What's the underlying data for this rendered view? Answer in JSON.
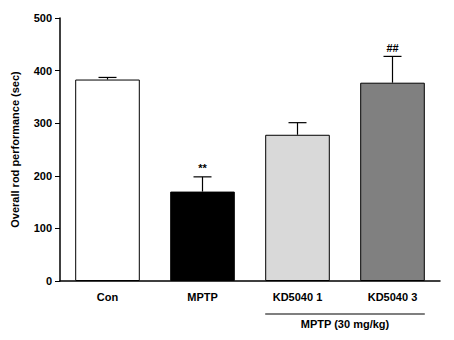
{
  "chart_data": {
    "type": "bar",
    "categories": [
      "Con",
      "MPTP",
      "KD5040 1",
      "KD5040 3"
    ],
    "values": [
      383,
      170,
      278,
      377
    ],
    "errors": [
      4,
      28,
      23,
      50
    ],
    "colors": [
      "#ffffff",
      "#000000",
      "#d9d9d9",
      "#808080"
    ],
    "ylabel": "Overall rod performance (sec)",
    "ylim": [
      0,
      500
    ],
    "yticks": [
      0,
      100,
      200,
      300,
      400,
      500
    ],
    "grid": false,
    "annotations": [
      {
        "category": "MPTP",
        "text": "**"
      },
      {
        "category": "KD5040 3",
        "text": "##"
      }
    ],
    "group_label": {
      "text": "MPTP (30 mg/kg)",
      "categories": [
        "KD5040 1",
        "KD5040 3"
      ]
    }
  }
}
